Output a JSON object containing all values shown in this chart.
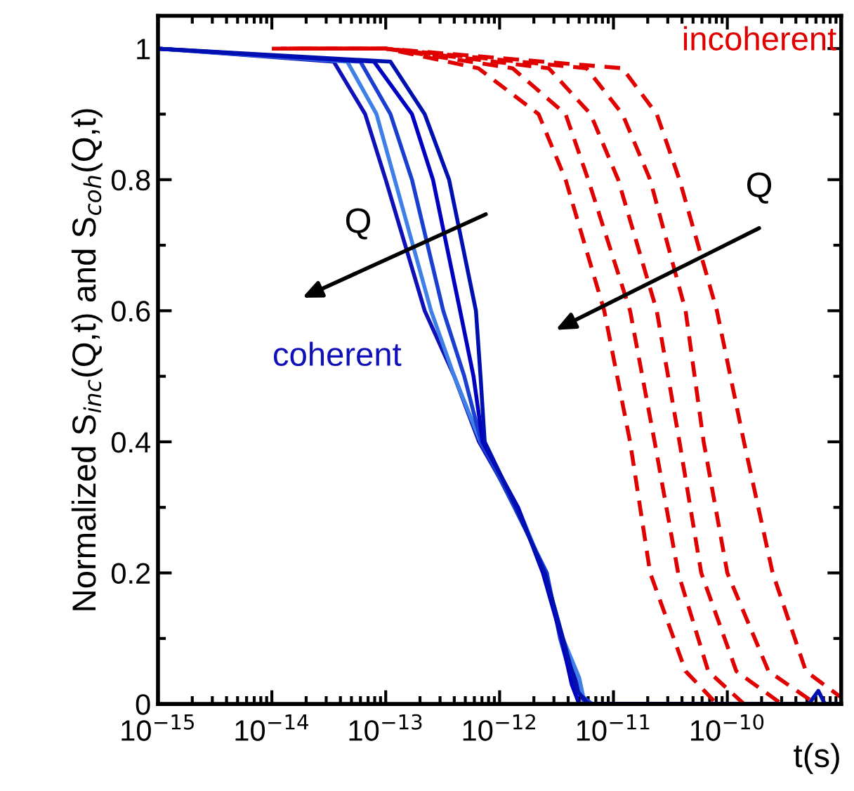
{
  "chart_data": {
    "type": "line",
    "xlabel": "t(s)",
    "ylabel": "Normalized S$_{inc}$(Q,t) and S$_{coh}$(Q,t)",
    "log": "x",
    "xlim": [
      1e-15,
      1e-09
    ],
    "ylim": [
      0,
      1.05
    ],
    "xticks": [
      {
        "value": 1e-15,
        "label": "10$^{−15}$"
      },
      {
        "value": 1e-14,
        "label": "10$^{−14}$"
      },
      {
        "value": 1e-13,
        "label": "10$^{−13}$"
      },
      {
        "value": 1e-12,
        "label": "10$^{−12}$"
      },
      {
        "value": 1e-11,
        "label": "10$^{−11}$"
      },
      {
        "value": 1e-10,
        "label": "10$^{−10}$"
      },
      {
        "value": 1e-09,
        "label": null
      }
    ],
    "yticks": [
      0,
      0.2,
      0.4,
      0.6,
      0.8,
      1
    ],
    "grid": false,
    "legend": false,
    "marker": "none",
    "series": [
      {
        "color": "#1010b8",
        "line_style": "solid",
        "x": [
          1e-15,
          3.5e-14,
          6.6e-14,
          1e-13,
          2.2e-13,
          4e-13,
          6.6e-13,
          1.4e-12,
          2.5e-12,
          3.5e-12,
          4.8e-12,
          5.6e-12
        ],
        "values": [
          1,
          0.98,
          0.9,
          0.8,
          0.6,
          0.5,
          0.4,
          0.3,
          0.2,
          0.1,
          0.03,
          0
        ]
      },
      {
        "color": "#3f7fe8",
        "line_style": "solid",
        "x": [
          1e-15,
          4.6e-14,
          8.3e-14,
          1.2e-13,
          2.5e-13,
          4e-13,
          6.8e-13,
          1.45e-12,
          2.5e-12,
          3.6e-12,
          5e-12,
          5.6e-12,
          1e-11
        ],
        "values": [
          1,
          0.98,
          0.9,
          0.8,
          0.6,
          0.5,
          0.4,
          0.3,
          0.2,
          0.1,
          0.04,
          0,
          0
        ]
      },
      {
        "color": "#1a3fd0",
        "line_style": "solid",
        "x": [
          1e-15,
          6e-14,
          1.1e-13,
          1.7e-13,
          3.2e-13,
          4.9e-13,
          6.9e-13,
          1.35e-12,
          2.6e-12,
          3.4e-12,
          4.6e-12,
          6.5e-12,
          3e-11
        ],
        "values": [
          1,
          0.98,
          0.9,
          0.8,
          0.6,
          0.5,
          0.4,
          0.3,
          0.2,
          0.1,
          0.02,
          0,
          0
        ]
      },
      {
        "color": "#0000c0",
        "line_style": "solid",
        "x": [
          1e-15,
          7.9e-14,
          1.7e-13,
          2.6e-13,
          4.5e-13,
          5.9e-13,
          7.1e-13,
          1.45e-12,
          2.4e-12,
          3.5e-12,
          4.3e-12,
          5e-12,
          1e-10
        ],
        "values": [
          1,
          0.98,
          0.9,
          0.8,
          0.6,
          0.5,
          0.4,
          0.3,
          0.2,
          0.1,
          0.03,
          0,
          0
        ]
      },
      {
        "color": "#0010b0",
        "line_style": "solid",
        "x": [
          1e-15,
          1.1e-13,
          2.2e-13,
          3.6e-13,
          6.2e-13,
          6.8e-13,
          7.4e-13,
          1.4e-12,
          2.5e-12,
          3.6e-12,
          4.8e-12,
          6e-12,
          5.2e-10,
          6.3e-10,
          7.2e-10,
          1e-09
        ],
        "values": [
          1,
          0.98,
          0.9,
          0.8,
          0.6,
          0.5,
          0.4,
          0.3,
          0.2,
          0.1,
          0.02,
          0,
          0,
          0.02,
          0,
          0
        ]
      },
      {
        "color": "#e00000",
        "line_style": "dashed",
        "x": [
          1e-14,
          1e-13,
          6.5e-13,
          2.2e-12,
          3.8e-12,
          8.3e-12,
          1.4e-11,
          2.1e-11,
          4.3e-11,
          8.1e-11
        ],
        "values": [
          1,
          1,
          0.97,
          0.9,
          0.8,
          0.6,
          0.4,
          0.2,
          0.05,
          0
        ]
      },
      {
        "color": "#e00000",
        "line_style": "dashed",
        "x": [
          1.2e-14,
          1e-13,
          1.3e-12,
          3.8e-12,
          6e-12,
          1.4e-11,
          2.3e-11,
          3.7e-11,
          6.8e-11,
          1.4e-10
        ],
        "values": [
          1,
          1,
          0.97,
          0.9,
          0.8,
          0.6,
          0.4,
          0.2,
          0.05,
          0
        ]
      },
      {
        "color": "#e00000",
        "line_style": "dashed",
        "x": [
          1.4e-14,
          1e-13,
          2.7e-12,
          6.3e-12,
          1.1e-11,
          2.4e-11,
          3.8e-11,
          5.9e-11,
          1.2e-10,
          3e-10
        ],
        "values": [
          1,
          1,
          0.97,
          0.9,
          0.8,
          0.6,
          0.4,
          0.2,
          0.05,
          0
        ]
      },
      {
        "color": "#e00000",
        "line_style": "dashed",
        "x": [
          1.6e-14,
          1e-13,
          5.8e-12,
          1.2e-11,
          2.1e-11,
          4.3e-11,
          6.2e-11,
          1e-10,
          2.3e-10,
          6e-10
        ],
        "values": [
          1,
          1,
          0.97,
          0.9,
          0.8,
          0.6,
          0.4,
          0.2,
          0.05,
          0
        ]
      },
      {
        "color": "#e00000",
        "line_style": "dashed",
        "x": [
          1.8e-14,
          1e-13,
          1.2e-11,
          2.4e-11,
          3.8e-11,
          8.1e-11,
          1.4e-10,
          2.5e-10,
          4.9e-10,
          1e-09
        ],
        "values": [
          1,
          1,
          0.97,
          0.9,
          0.8,
          0.6,
          0.4,
          0.2,
          0.05,
          0.01
        ]
      }
    ],
    "annotations": [
      "incoherent",
      "coherent",
      "Q",
      "Q"
    ]
  }
}
